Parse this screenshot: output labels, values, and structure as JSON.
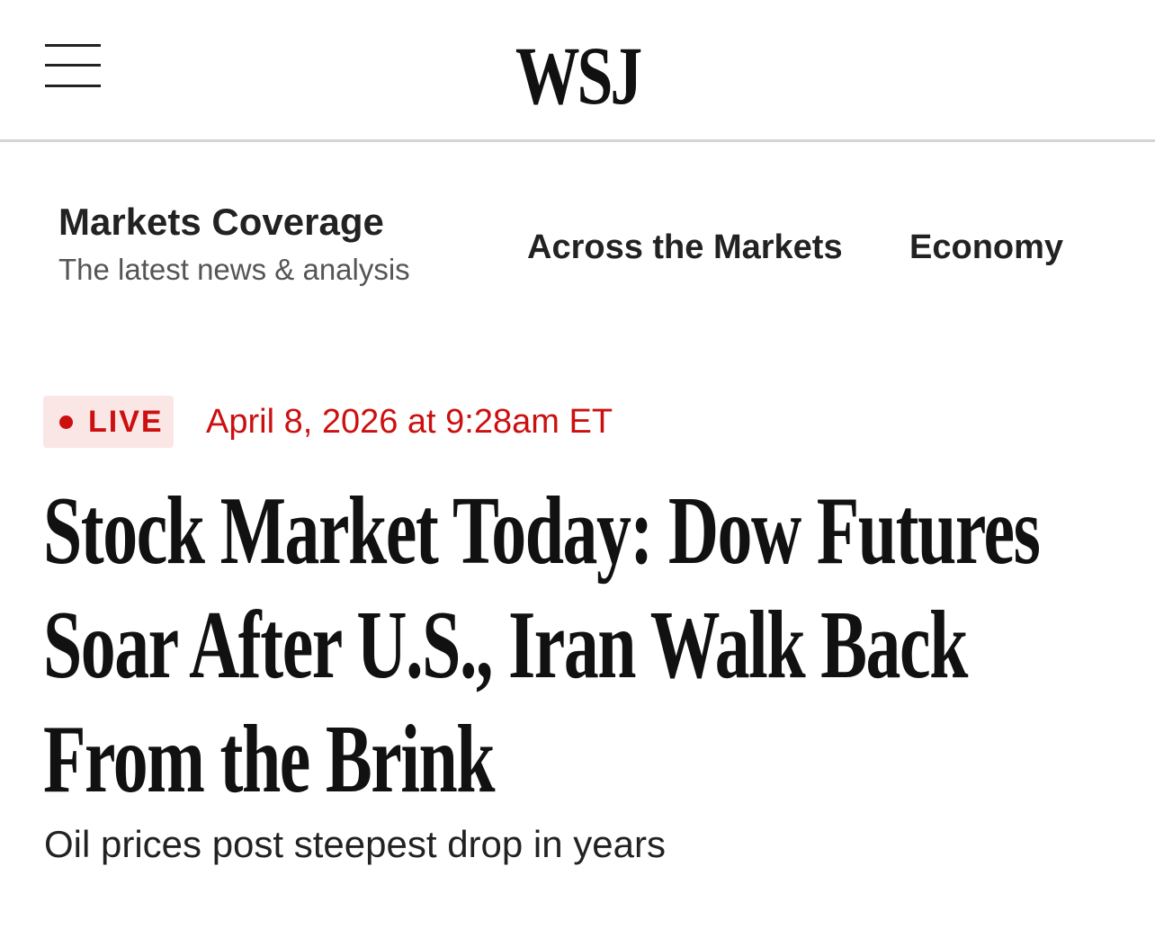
{
  "header": {
    "logo_text": "WSJ",
    "menu_icon": "hamburger-menu-icon"
  },
  "section": {
    "title": "Markets Coverage",
    "subtitle": "The latest news & analysis"
  },
  "nav": {
    "items": [
      {
        "label": "Across the Markets"
      },
      {
        "label": "Economy"
      }
    ]
  },
  "article": {
    "live_label": "LIVE",
    "timestamp": "April 8, 2026 at 9:28am ET",
    "headline": "Stock Market Today: Dow Futures Soar After U.S., Iran Walk Back From the Brink",
    "dek": "Oil prices post steepest drop in years"
  },
  "colors": {
    "live_red": "#cc1010",
    "live_badge_bg": "#fbe6e6",
    "divider": "#d4d4d4"
  }
}
